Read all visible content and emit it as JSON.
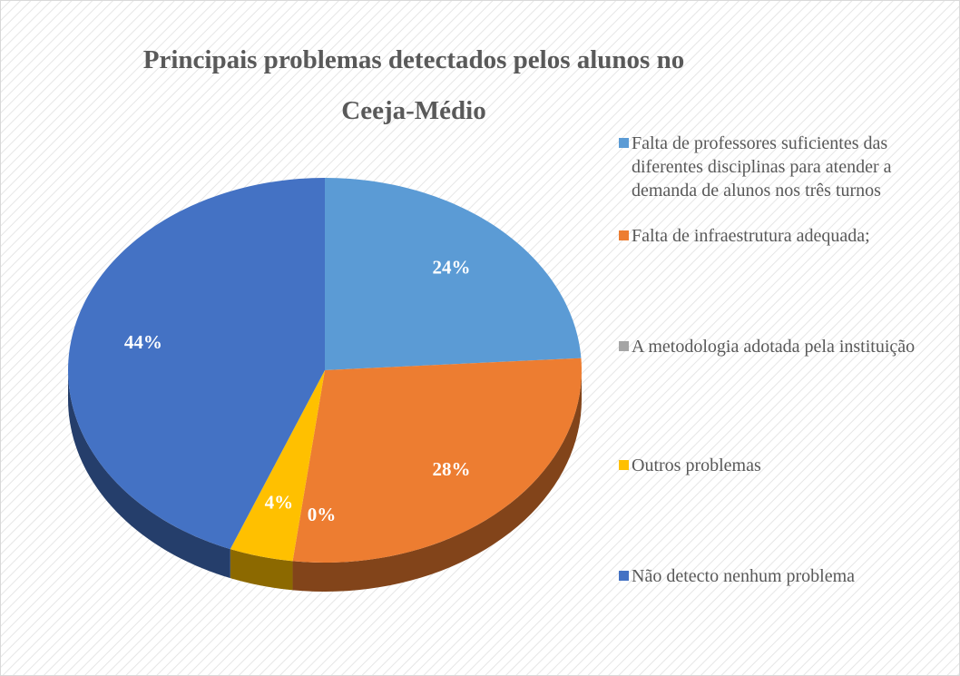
{
  "chart_data": {
    "type": "pie",
    "title": "Principais problemas detectados pelos alunos no Ceeja-Médio",
    "categories": [
      "Falta de professores suficientes das diferentes disciplinas para atender a demanda de alunos nos três turnos",
      "Falta de infraestrutura adequada;",
      "A metodologia adotada pela instituição",
      "Outros problemas",
      "Não detecto nenhum problema"
    ],
    "values": [
      24,
      28,
      0,
      4,
      44
    ],
    "value_labels": [
      "24%",
      "28%",
      "0%",
      "4%",
      "44%"
    ],
    "colors": [
      "#5b9bd5",
      "#ed7d31",
      "#a5a5a5",
      "#ffc000",
      "#4472c4"
    ],
    "legend": "right"
  }
}
